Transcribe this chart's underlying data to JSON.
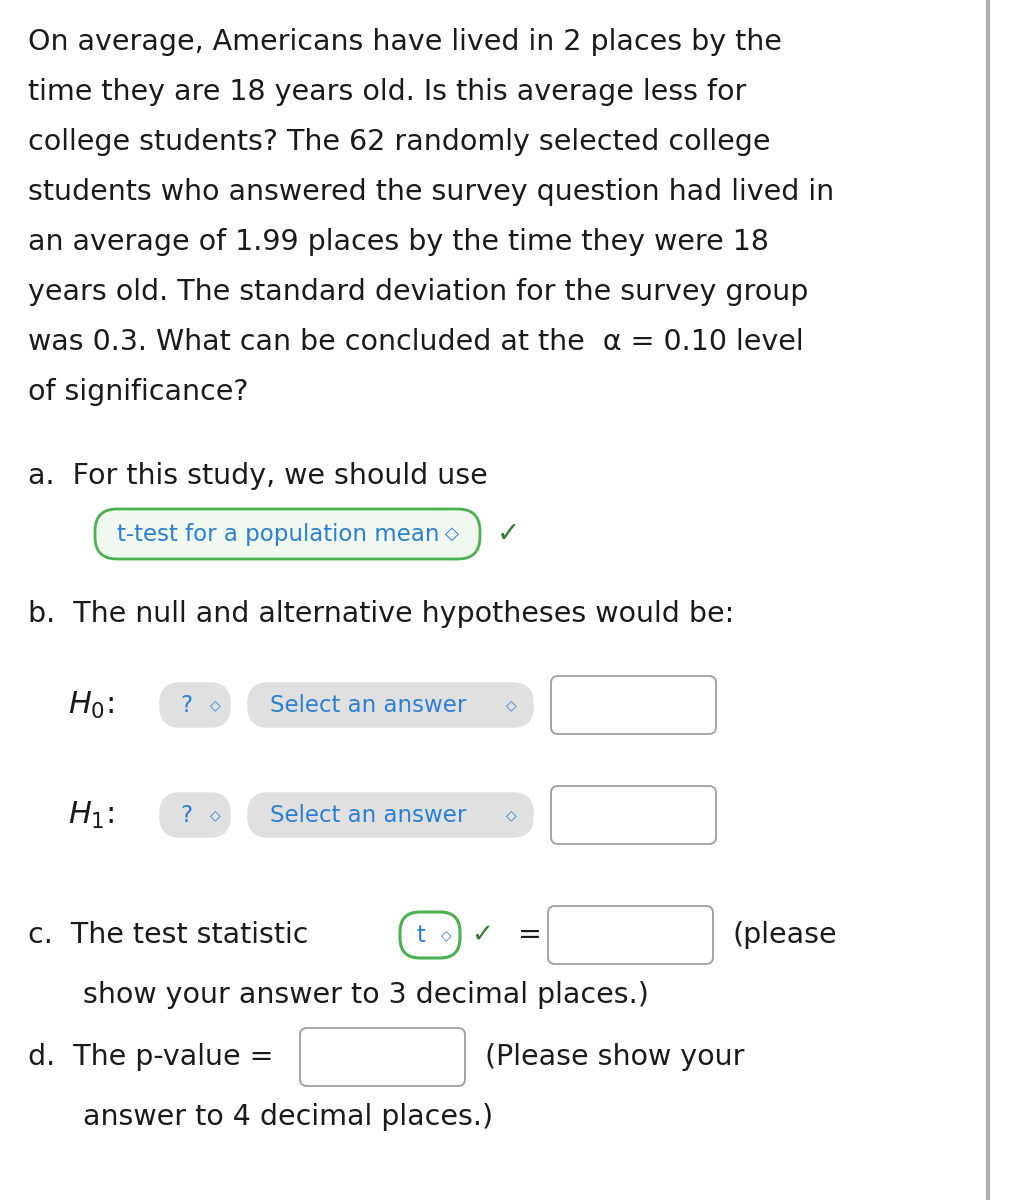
{
  "bg_color": "#ffffff",
  "text_color": "#1a1a1a",
  "blue_color": "#2b7fd4",
  "green_color": "#2e7d32",
  "green_border": "#4caf50",
  "gray_bg": "#e0e0e0",
  "gray_border": "#9e9e9e",
  "para_lines": [
    "On average, Americans have lived in 2 places by the",
    "time they are 18 years old. Is this average less for",
    "college students? The 62 randomly selected college",
    "students who answered the survey question had lived in",
    "an average of 1.99 places by the time they were 18",
    "years old. The standard deviation for the survey group",
    "was 0.3. What can be concluded at the  α = 0.10 level",
    "of significance?"
  ],
  "item_a_label": "a.  For this study, we should use",
  "item_a_dropdown": "t-test for a population mean",
  "item_b_label": "b.  The null and alternative hypotheses would be:",
  "select_answer": "Select an answer",
  "item_c_label": "c.  The test statistic",
  "item_c_please": "(please",
  "item_c_note": "show your answer to 3 decimal places.)",
  "item_d_label": "d.  The p-value =",
  "item_d_note": "(Please show your",
  "item_d_note2": "answer to 4 decimal places.)",
  "checkmark": "✓",
  "question_mark": "?",
  "t_label": "t",
  "equals": "=",
  "para_fontsize": 20.5,
  "label_fontsize": 20.5,
  "dropdown_fontsize": 16.5,
  "math_fontsize": 22
}
